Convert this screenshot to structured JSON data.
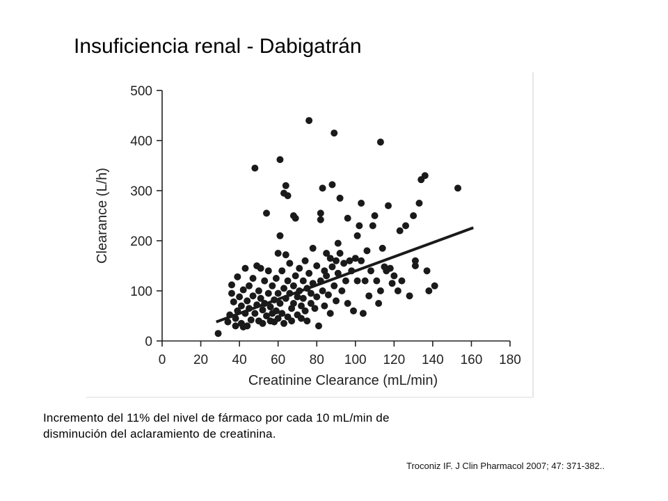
{
  "slide": {
    "title": "Insuficiencia renal - Dabigatrán",
    "caption_line1": "Incremento del 11% del nivel de fármaco por cada 10 mL/min de",
    "caption_line2": "disminución del aclaramiento de creatinina.",
    "citation": "Troconiz IF. J Clin Pharmacol 2007; 47: 371-382.."
  },
  "chart_data": {
    "type": "scatter",
    "xlabel": "Creatinine Clearance (mL/min)",
    "ylabel": "Clearance (L/h)",
    "xlim": [
      0,
      180
    ],
    "ylim": [
      0,
      500
    ],
    "xticks": [
      0,
      20,
      40,
      60,
      80,
      100,
      120,
      140,
      160,
      180
    ],
    "yticks": [
      0,
      100,
      200,
      300,
      400,
      500
    ],
    "grid": false,
    "legend": "none",
    "marker_color": "#1a1a1a",
    "points": [
      [
        29,
        15
      ],
      [
        34,
        38
      ],
      [
        35,
        52
      ],
      [
        36,
        112
      ],
      [
        36,
        95
      ],
      [
        37,
        78
      ],
      [
        38,
        45
      ],
      [
        38,
        30
      ],
      [
        39,
        128
      ],
      [
        39,
        60
      ],
      [
        40,
        88
      ],
      [
        41,
        70
      ],
      [
        41,
        35
      ],
      [
        42,
        102
      ],
      [
        42,
        28
      ],
      [
        43,
        145
      ],
      [
        43,
        55
      ],
      [
        44,
        80
      ],
      [
        44,
        30
      ],
      [
        45,
        110
      ],
      [
        45,
        65
      ],
      [
        46,
        42
      ],
      [
        47,
        125
      ],
      [
        47,
        90
      ],
      [
        48,
        345
      ],
      [
        48,
        55
      ],
      [
        49,
        150
      ],
      [
        49,
        72
      ],
      [
        50,
        100
      ],
      [
        50,
        40
      ],
      [
        51,
        145
      ],
      [
        51,
        85
      ],
      [
        52,
        62
      ],
      [
        52,
        35
      ],
      [
        53,
        120
      ],
      [
        53,
        75
      ],
      [
        54,
        255
      ],
      [
        54,
        50
      ],
      [
        55,
        140
      ],
      [
        55,
        95
      ],
      [
        56,
        68
      ],
      [
        56,
        40
      ],
      [
        57,
        110
      ],
      [
        57,
        55
      ],
      [
        58,
        82
      ],
      [
        58,
        38
      ],
      [
        59,
        125
      ],
      [
        59,
        60
      ],
      [
        60,
        175
      ],
      [
        60,
        95
      ],
      [
        60,
        45
      ],
      [
        61,
        362
      ],
      [
        61,
        210
      ],
      [
        61,
        75
      ],
      [
        62,
        140
      ],
      [
        62,
        55
      ],
      [
        63,
        295
      ],
      [
        63,
        105
      ],
      [
        63,
        35
      ],
      [
        64,
        310
      ],
      [
        64,
        172
      ],
      [
        64,
        85
      ],
      [
        65,
        290
      ],
      [
        65,
        120
      ],
      [
        65,
        48
      ],
      [
        66,
        155
      ],
      [
        66,
        95
      ],
      [
        67,
        65
      ],
      [
        67,
        40
      ],
      [
        68,
        250
      ],
      [
        68,
        110
      ],
      [
        68,
        75
      ],
      [
        69,
        245
      ],
      [
        69,
        130
      ],
      [
        70,
        88
      ],
      [
        70,
        52
      ],
      [
        71,
        145
      ],
      [
        71,
        100
      ],
      [
        72,
        70
      ],
      [
        72,
        45
      ],
      [
        73,
        120
      ],
      [
        73,
        85
      ],
      [
        74,
        160
      ],
      [
        74,
        60
      ],
      [
        75,
        105
      ],
      [
        75,
        40
      ],
      [
        76,
        440
      ],
      [
        76,
        135
      ],
      [
        77,
        95
      ],
      [
        77,
        75
      ],
      [
        78,
        185
      ],
      [
        78,
        115
      ],
      [
        79,
        65
      ],
      [
        80,
        150
      ],
      [
        80,
        88
      ],
      [
        81,
        30
      ],
      [
        82,
        255
      ],
      [
        82,
        242
      ],
      [
        82,
        120
      ],
      [
        83,
        305
      ],
      [
        83,
        100
      ],
      [
        84,
        140
      ],
      [
        84,
        70
      ],
      [
        85,
        175
      ],
      [
        85,
        130
      ],
      [
        86,
        92
      ],
      [
        87,
        165
      ],
      [
        87,
        55
      ],
      [
        88,
        312
      ],
      [
        88,
        148
      ],
      [
        89,
        415
      ],
      [
        89,
        110
      ],
      [
        90,
        160
      ],
      [
        90,
        80
      ],
      [
        91,
        195
      ],
      [
        91,
        135
      ],
      [
        92,
        285
      ],
      [
        92,
        175
      ],
      [
        93,
        100
      ],
      [
        94,
        155
      ],
      [
        95,
        120
      ],
      [
        96,
        245
      ],
      [
        96,
        75
      ],
      [
        97,
        160
      ],
      [
        98,
        140
      ],
      [
        99,
        60
      ],
      [
        100,
        165
      ],
      [
        101,
        210
      ],
      [
        101,
        120
      ],
      [
        102,
        230
      ],
      [
        103,
        275
      ],
      [
        103,
        160
      ],
      [
        104,
        55
      ],
      [
        105,
        120
      ],
      [
        106,
        180
      ],
      [
        107,
        90
      ],
      [
        108,
        140
      ],
      [
        109,
        230
      ],
      [
        110,
        250
      ],
      [
        111,
        120
      ],
      [
        112,
        75
      ],
      [
        113,
        397
      ],
      [
        113,
        100
      ],
      [
        114,
        185
      ],
      [
        115,
        148
      ],
      [
        116,
        140
      ],
      [
        117,
        270
      ],
      [
        118,
        145
      ],
      [
        119,
        115
      ],
      [
        120,
        130
      ],
      [
        122,
        100
      ],
      [
        123,
        220
      ],
      [
        124,
        120
      ],
      [
        126,
        230
      ],
      [
        128,
        90
      ],
      [
        130,
        250
      ],
      [
        131,
        160
      ],
      [
        131,
        150
      ],
      [
        133,
        275
      ],
      [
        134,
        322
      ],
      [
        136,
        330
      ],
      [
        137,
        140
      ],
      [
        138,
        100
      ],
      [
        141,
        110
      ],
      [
        153,
        305
      ]
    ],
    "trendline": {
      "x": [
        28,
        161
      ],
      "y": [
        38,
        226
      ]
    }
  }
}
